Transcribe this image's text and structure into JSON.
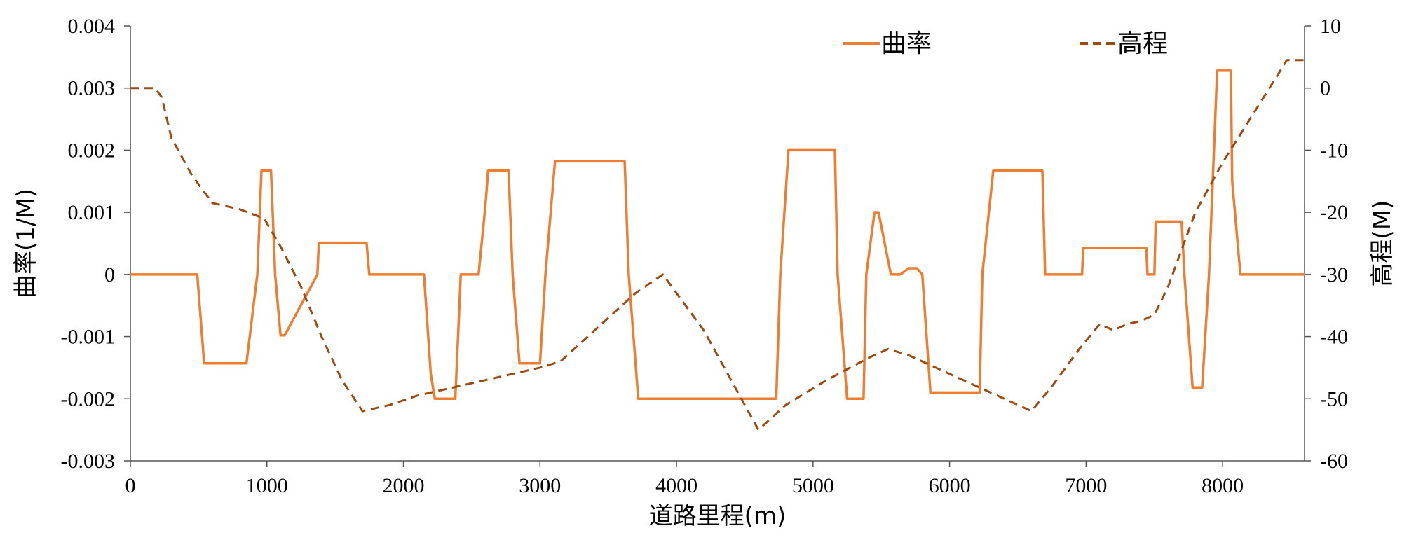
{
  "chart_data": {
    "type": "line",
    "xlabel": "道路里程(m)",
    "ylabel_left": "曲率(1/M)",
    "ylabel_right": "高程(M)",
    "xlim": [
      0,
      8600
    ],
    "ylim_left": [
      -0.003,
      0.004
    ],
    "ylim_right": [
      -60,
      10
    ],
    "x_ticks": [
      "0",
      "1000",
      "2000",
      "3000",
      "4000",
      "5000",
      "6000",
      "7000",
      "8000"
    ],
    "x_tick_values": [
      0,
      1000,
      2000,
      3000,
      4000,
      5000,
      6000,
      7000,
      8000
    ],
    "y_left_ticks": [
      "0.004",
      "0.003",
      "0.002",
      "0.001",
      "0",
      "-0.001",
      "-0.002",
      "-0.003"
    ],
    "y_left_tick_values": [
      0.004,
      0.003,
      0.002,
      0.001,
      0,
      -0.001,
      -0.002,
      -0.003
    ],
    "y_right_ticks": [
      "10",
      "0",
      "-10",
      "-20",
      "-30",
      "-40",
      "-50",
      "-60"
    ],
    "y_right_tick_values": [
      10,
      0,
      -10,
      -20,
      -30,
      -40,
      -50,
      -60
    ],
    "grid": false,
    "legend_position": "top-right",
    "colors": {
      "curvature": "#ED7D31",
      "elevation": "#9C4A12",
      "axis": "#555555"
    },
    "series": [
      {
        "name": "曲率",
        "axis": "left",
        "style": "solid",
        "x": [
          0,
          490,
          540,
          850,
          930,
          960,
          1030,
          1060,
          1100,
          1130,
          1370,
          1380,
          1400,
          1730,
          1750,
          2150,
          2200,
          2230,
          2380,
          2420,
          2550,
          2600,
          2620,
          2770,
          2800,
          2850,
          2900,
          3000,
          3040,
          3110,
          3130,
          3620,
          3650,
          3720,
          3740,
          4730,
          4760,
          4820,
          4840,
          5160,
          5180,
          5250,
          5270,
          5370,
          5390,
          5450,
          5480,
          5570,
          5600,
          5640,
          5700,
          5760,
          5800,
          5860,
          5890,
          5950,
          6000,
          6220,
          6240,
          6320,
          6340,
          6650,
          6680,
          6700,
          6970,
          6980,
          7440,
          7450,
          7500,
          7510,
          7530,
          7700,
          7720,
          7780,
          7820,
          7850,
          7900,
          7960,
          7990,
          8060,
          8070,
          8130,
          8600
        ],
        "values": [
          0,
          0,
          -0.00143,
          -0.00143,
          0,
          0.00167,
          0.00167,
          0,
          -0.00098,
          -0.00098,
          0,
          0.00051,
          0.00051,
          0.00051,
          0,
          0,
          -0.0016,
          -0.002,
          -0.002,
          0,
          0,
          0.0011,
          0.00167,
          0.00167,
          0,
          -0.00143,
          -0.00143,
          -0.00143,
          0,
          0.00182,
          0.00182,
          0.00182,
          0,
          -0.002,
          -0.002,
          -0.002,
          0,
          0.002,
          0.002,
          0.002,
          0,
          -0.002,
          -0.002,
          -0.002,
          0,
          0.001,
          0.001,
          0,
          0,
          0,
          0.0001,
          0.0001,
          0,
          -0.0019,
          -0.0019,
          -0.0019,
          -0.0019,
          -0.0019,
          0,
          0.00167,
          0.00167,
          0.00167,
          0.00167,
          0,
          0,
          0.00043,
          0.00043,
          0,
          0,
          0.00085,
          0.00085,
          0.00085,
          0,
          -0.00182,
          -0.00182,
          -0.00182,
          0,
          0.00328,
          0.00328,
          0.00328,
          0.0015,
          0,
          0
        ]
      },
      {
        "name": "高程",
        "axis": "right",
        "style": "dashed",
        "x": [
          0,
          180,
          230,
          300,
          450,
          600,
          800,
          980,
          1100,
          1250,
          1400,
          1550,
          1700,
          1900,
          2100,
          2300,
          2600,
          2800,
          3000,
          3150,
          3400,
          3700,
          3900,
          4200,
          4400,
          4600,
          4800,
          5100,
          5400,
          5550,
          5700,
          6000,
          6300,
          6600,
          6750,
          6950,
          7100,
          7200,
          7300,
          7400,
          7500,
          7600,
          7700,
          7800,
          8000,
          8200,
          8400,
          8470,
          8600
        ],
        "values": [
          0,
          0,
          -1.5,
          -8,
          -14,
          -18.5,
          -19.5,
          -21,
          -25.5,
          -32,
          -40,
          -47,
          -52,
          -51,
          -49.5,
          -48.5,
          -47,
          -46,
          -45,
          -44,
          -39,
          -33,
          -30,
          -39,
          -47,
          -55,
          -51,
          -47,
          -43.5,
          -42,
          -43,
          -46,
          -49,
          -52,
          -48,
          -42,
          -38,
          -39,
          -38,
          -37.5,
          -36.5,
          -32,
          -26,
          -20,
          -12,
          -5,
          2,
          4.5,
          4.5
        ]
      }
    ]
  }
}
